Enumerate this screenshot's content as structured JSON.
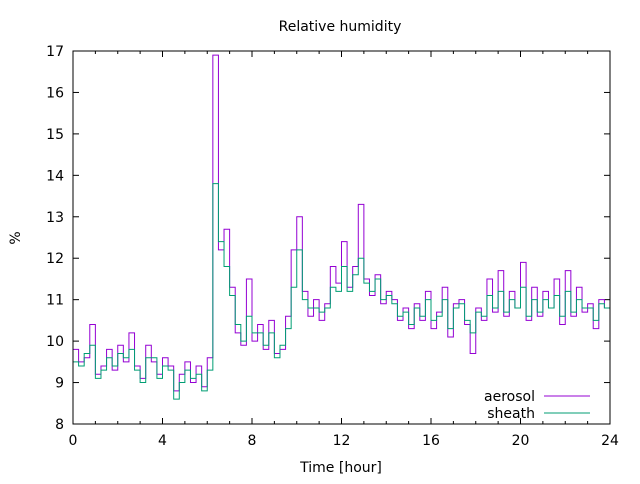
{
  "chart_data": {
    "type": "line",
    "title": "Relative humidity",
    "xlabel": "Time [hour]",
    "ylabel": "%",
    "xlim": [
      0,
      24
    ],
    "ylim": [
      8,
      17
    ],
    "xticks": [
      0,
      4,
      8,
      12,
      16,
      20,
      24
    ],
    "yticks": [
      8,
      9,
      10,
      11,
      12,
      13,
      14,
      15,
      16,
      17
    ],
    "grid": false,
    "legend_position": "bottom-right",
    "x_step": 0.25,
    "series": [
      {
        "name": "aerosol",
        "color": "#9400d3",
        "values": [
          9.8,
          9.5,
          9.6,
          10.4,
          9.2,
          9.4,
          9.8,
          9.3,
          9.9,
          9.5,
          10.2,
          9.4,
          9.1,
          9.9,
          9.5,
          9.2,
          9.6,
          9.4,
          8.8,
          9.2,
          9.5,
          9.0,
          9.4,
          8.9,
          9.6,
          16.9,
          12.2,
          12.7,
          11.3,
          10.2,
          9.9,
          11.5,
          10.0,
          10.4,
          9.8,
          10.5,
          9.7,
          9.8,
          10.6,
          12.2,
          13.0,
          11.2,
          10.6,
          11.0,
          10.5,
          10.9,
          11.8,
          11.4,
          12.4,
          11.3,
          11.8,
          13.3,
          11.5,
          11.1,
          11.6,
          10.9,
          11.2,
          11.0,
          10.5,
          10.8,
          10.3,
          10.9,
          10.5,
          11.2,
          10.3,
          10.7,
          11.3,
          10.1,
          10.9,
          11.0,
          10.4,
          9.7,
          10.8,
          10.5,
          11.5,
          10.7,
          11.7,
          10.6,
          11.2,
          10.8,
          11.9,
          10.5,
          11.3,
          10.6,
          11.2,
          10.8,
          11.5,
          10.4,
          11.7,
          10.6,
          11.3,
          10.7,
          10.9,
          10.3,
          11.0,
          10.8,
          10.2
        ]
      },
      {
        "name": "sheath",
        "color": "#009e73",
        "values": [
          9.5,
          9.4,
          9.7,
          9.9,
          9.1,
          9.3,
          9.6,
          9.4,
          9.7,
          9.6,
          9.8,
          9.3,
          9.0,
          9.6,
          9.6,
          9.1,
          9.4,
          9.3,
          8.6,
          9.0,
          9.3,
          9.1,
          9.2,
          8.8,
          9.3,
          13.8,
          12.4,
          11.8,
          11.1,
          10.4,
          10.0,
          10.6,
          10.2,
          10.2,
          9.9,
          10.2,
          9.6,
          9.9,
          10.3,
          11.3,
          12.2,
          11.0,
          10.8,
          10.8,
          10.7,
          10.8,
          11.3,
          11.2,
          11.8,
          11.2,
          11.6,
          12.0,
          11.4,
          11.2,
          11.5,
          11.0,
          11.1,
          10.9,
          10.6,
          10.7,
          10.4,
          10.8,
          10.6,
          11.0,
          10.5,
          10.6,
          11.0,
          10.3,
          10.8,
          10.9,
          10.5,
          10.2,
          10.7,
          10.6,
          11.1,
          10.8,
          11.2,
          10.7,
          11.0,
          10.8,
          11.3,
          10.6,
          11.0,
          10.7,
          11.0,
          10.8,
          11.1,
          10.6,
          11.2,
          10.7,
          11.0,
          10.8,
          10.8,
          10.5,
          10.9,
          10.8,
          10.4
        ]
      }
    ]
  }
}
